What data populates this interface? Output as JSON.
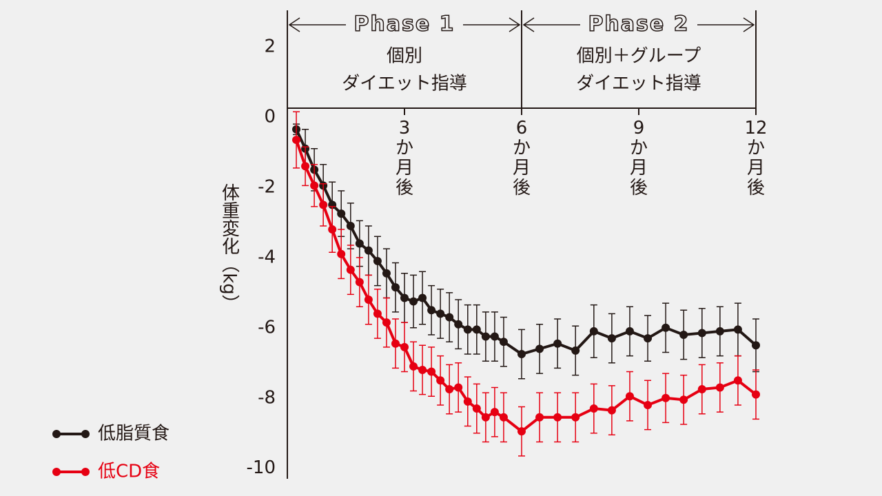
{
  "chart_data": {
    "type": "line",
    "y_label": "体重変化（kg）",
    "x": [
      0.23,
      0.46,
      0.69,
      0.92,
      1.15,
      1.38,
      1.62,
      1.85,
      2.08,
      2.31,
      2.54,
      2.77,
      3.0,
      3.23,
      3.46,
      3.69,
      3.92,
      4.15,
      4.38,
      4.62,
      4.85,
      5.08,
      5.31,
      5.54,
      6.0,
      6.46,
      6.92,
      7.38,
      7.85,
      8.31,
      8.77,
      9.23,
      9.69,
      10.15,
      10.62,
      11.08,
      11.54,
      12.0
    ],
    "series": [
      {
        "name": "低脂質食",
        "color": "#231815",
        "values": [
          -0.35,
          -0.9,
          -1.5,
          -1.95,
          -2.5,
          -2.75,
          -3.1,
          -3.6,
          -3.8,
          -4.1,
          -4.45,
          -4.85,
          -5.15,
          -5.25,
          -5.15,
          -5.5,
          -5.6,
          -5.7,
          -5.9,
          -6.05,
          -6.05,
          -6.25,
          -6.25,
          -6.4,
          -6.75,
          -6.6,
          -6.45,
          -6.65,
          -6.1,
          -6.3,
          -6.1,
          -6.3,
          -6.0,
          -6.2,
          -6.15,
          -6.1,
          -6.05,
          -6.5
        ],
        "errors": [
          0.15,
          0.55,
          0.6,
          0.6,
          0.65,
          0.65,
          0.65,
          0.65,
          0.7,
          0.7,
          0.7,
          0.7,
          0.7,
          0.75,
          0.75,
          0.7,
          0.7,
          0.7,
          0.7,
          0.7,
          0.7,
          0.7,
          0.7,
          0.7,
          0.7,
          0.7,
          0.7,
          0.7,
          0.75,
          0.7,
          0.7,
          0.65,
          0.7,
          0.7,
          0.7,
          0.7,
          0.75,
          0.75
        ]
      },
      {
        "name": "低CD食",
        "color": "#e60012",
        "values": [
          -0.65,
          -1.4,
          -1.95,
          -2.5,
          -3.2,
          -3.9,
          -4.35,
          -4.7,
          -5.2,
          -5.6,
          -5.85,
          -6.45,
          -6.55,
          -7.1,
          -7.2,
          -7.25,
          -7.5,
          -7.75,
          -7.7,
          -8.1,
          -8.3,
          -8.55,
          -8.4,
          -8.55,
          -8.95,
          -8.55,
          -8.55,
          -8.55,
          -8.3,
          -8.35,
          -7.95,
          -8.2,
          -8.0,
          -8.05,
          -7.75,
          -7.7,
          -7.5,
          -7.9
        ],
        "errors": [
          0.8,
          0.55,
          0.6,
          0.6,
          0.65,
          0.7,
          0.7,
          0.7,
          0.7,
          0.7,
          0.7,
          0.7,
          0.7,
          0.7,
          0.7,
          0.7,
          0.7,
          0.7,
          0.7,
          0.7,
          0.7,
          0.7,
          0.7,
          0.7,
          0.7,
          0.7,
          0.7,
          0.7,
          0.7,
          0.7,
          0.7,
          0.7,
          0.7,
          0.7,
          0.7,
          0.7,
          0.7,
          0.7
        ]
      }
    ],
    "xlim": [
      0,
      12
    ],
    "xticks": [
      {
        "value": 3,
        "label": "3か月後"
      },
      {
        "value": 6,
        "label": "6か月後"
      },
      {
        "value": 9,
        "label": "9か月後"
      },
      {
        "value": 12,
        "label": "12か月後"
      }
    ],
    "ylim": [
      -10.3,
      3.0
    ],
    "yticks": [
      2,
      0,
      -2,
      -4,
      -6,
      -8,
      -10
    ],
    "phases": [
      {
        "name": "Phase 1",
        "lines": [
          "個別",
          "ダイエット指導"
        ],
        "span": [
          0,
          6
        ]
      },
      {
        "name": "Phase 2",
        "lines": [
          "個別＋グループ",
          "ダイエット指導"
        ],
        "span": [
          6,
          12
        ]
      }
    ],
    "legend": "lower left"
  }
}
